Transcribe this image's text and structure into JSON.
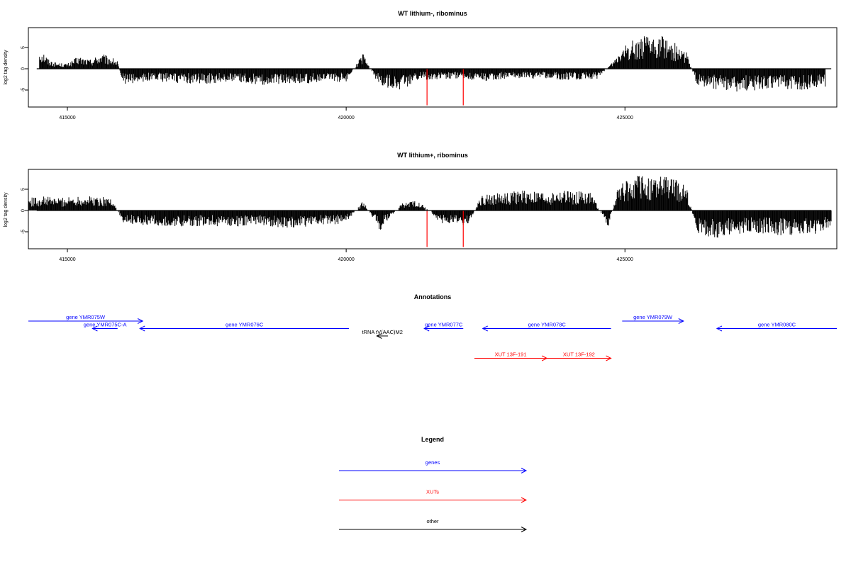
{
  "chart_data": [
    {
      "type": "bar",
      "title": "WT lithium-, ribominus",
      "ylabel": "log2 tag density",
      "xlim": [
        414300,
        428800
      ],
      "ylim": [
        -9,
        10
      ],
      "xticks": [
        415000,
        420000,
        425000
      ],
      "yticks": [
        -5,
        0,
        5
      ],
      "series": [
        {
          "color": "#000000",
          "profile": [
            [
              414500,
              4.0
            ],
            [
              414600,
              3.2
            ],
            [
              414650,
              2.0
            ],
            [
              414800,
              1.2
            ],
            [
              415000,
              1.0
            ],
            [
              415200,
              2.5
            ],
            [
              415400,
              1.8
            ],
            [
              415600,
              3.0
            ],
            [
              415800,
              2.2
            ],
            [
              415900,
              1.5
            ],
            [
              416000,
              -3.0
            ],
            [
              416500,
              -2.5
            ],
            [
              417000,
              -2.8
            ],
            [
              417500,
              -3.0
            ],
            [
              418000,
              -2.5
            ],
            [
              418500,
              -3.2
            ],
            [
              419000,
              -2.8
            ],
            [
              419500,
              -3.0
            ],
            [
              420000,
              -2.5
            ],
            [
              420300,
              3.0
            ],
            [
              420600,
              -3.5
            ],
            [
              421000,
              -4.5
            ],
            [
              421300,
              -2.0
            ],
            [
              421500,
              -2.2
            ],
            [
              422000,
              -2.0
            ],
            [
              422500,
              -2.5
            ],
            [
              423000,
              -1.8
            ],
            [
              423500,
              -2.0
            ],
            [
              424000,
              -2.2
            ],
            [
              424500,
              -2.0
            ],
            [
              424800,
              1.5
            ],
            [
              424900,
              3.5
            ],
            [
              425100,
              5.5
            ],
            [
              425300,
              6.5
            ],
            [
              425500,
              6.0
            ],
            [
              425700,
              6.8
            ],
            [
              425900,
              5.0
            ],
            [
              426100,
              3.5
            ],
            [
              426300,
              -3.5
            ],
            [
              426600,
              -4.0
            ],
            [
              427000,
              -4.5
            ],
            [
              427400,
              -4.2
            ],
            [
              427800,
              -4.0
            ],
            [
              428200,
              -4.3
            ],
            [
              428600,
              -3.5
            ]
          ]
        },
        {
          "color": "#ff0000",
          "points": [
            [
              421450,
              -8.6
            ],
            [
              422100,
              -8.6
            ]
          ]
        }
      ]
    },
    {
      "type": "bar",
      "title": "WT lithium+, ribominus",
      "ylabel": "log2 tag density",
      "xlim": [
        414300,
        428800
      ],
      "ylim": [
        -9,
        10
      ],
      "xticks": [
        415000,
        420000,
        425000
      ],
      "yticks": [
        -5,
        0,
        5
      ],
      "series": [
        {
          "color": "#000000",
          "profile": [
            [
              414300,
              2.5
            ],
            [
              414600,
              2.8
            ],
            [
              414900,
              2.5
            ],
            [
              415200,
              3.0
            ],
            [
              415500,
              2.8
            ],
            [
              415800,
              2.5
            ],
            [
              416000,
              -2.5
            ],
            [
              416500,
              -3.0
            ],
            [
              417000,
              -3.2
            ],
            [
              417500,
              -3.0
            ],
            [
              418000,
              -3.2
            ],
            [
              418500,
              -3.0
            ],
            [
              419000,
              -3.5
            ],
            [
              419500,
              -3.0
            ],
            [
              420000,
              -2.5
            ],
            [
              420300,
              2.0
            ],
            [
              420600,
              -4.0
            ],
            [
              421000,
              1.5
            ],
            [
              421300,
              2.0
            ],
            [
              421700,
              -2.5
            ],
            [
              422200,
              -3.0
            ],
            [
              422400,
              3.0
            ],
            [
              422800,
              3.5
            ],
            [
              423200,
              4.0
            ],
            [
              423600,
              3.5
            ],
            [
              424000,
              4.0
            ],
            [
              424400,
              3.5
            ],
            [
              424700,
              -3.5
            ],
            [
              424900,
              5.5
            ],
            [
              425200,
              7.0
            ],
            [
              425500,
              6.5
            ],
            [
              425800,
              6.8
            ],
            [
              426100,
              5.0
            ],
            [
              426300,
              -5.0
            ],
            [
              426700,
              -5.5
            ],
            [
              427100,
              -4.5
            ],
            [
              427500,
              -4.5
            ],
            [
              427900,
              -5.0
            ],
            [
              428300,
              -4.8
            ],
            [
              428700,
              -4.0
            ]
          ]
        },
        {
          "color": "#ff0000",
          "points": [
            [
              421450,
              -8.6
            ],
            [
              422100,
              -8.6
            ]
          ]
        }
      ]
    }
  ],
  "annotations": {
    "title": "Annotations",
    "features": [
      {
        "label": "gene YMR075W",
        "color": "#0000ff",
        "start": 414300,
        "end": 416350,
        "row": 0
      },
      {
        "label": "gene YMR075C-A",
        "color": "#0000ff",
        "start": 415900,
        "end": 415450,
        "row": 1
      },
      {
        "label": "gene YMR076C",
        "color": "#0000ff",
        "start": 420050,
        "end": 416300,
        "row": 1
      },
      {
        "label": "gene YMR077C",
        "color": "#0000ff",
        "start": 422100,
        "end": 421400,
        "row": 1
      },
      {
        "label": "gene YMR078C",
        "color": "#0000ff",
        "start": 424750,
        "end": 422450,
        "row": 1
      },
      {
        "label": "gene YMR079W",
        "color": "#0000ff",
        "start": 424950,
        "end": 426050,
        "row": 0
      },
      {
        "label": "gene YMR080C",
        "color": "#0000ff",
        "start": 428800,
        "end": 426650,
        "row": 1
      },
      {
        "label": "tRNA tV(AAC)M2",
        "color": "#000000",
        "start": 420750,
        "end": 420550,
        "row": 2
      },
      {
        "label": "XUT 13F-191",
        "color": "#ff0000",
        "start": 422300,
        "end": 423600,
        "row": 5
      },
      {
        "label": "XUT 13F-192",
        "color": "#ff0000",
        "start": 423600,
        "end": 424750,
        "row": 5
      }
    ]
  },
  "legend": {
    "title": "Legend",
    "items": [
      {
        "label": "genes",
        "color": "#0000ff"
      },
      {
        "label": "XUTs",
        "color": "#ff0000"
      },
      {
        "label": "other",
        "color": "#000000"
      }
    ]
  }
}
